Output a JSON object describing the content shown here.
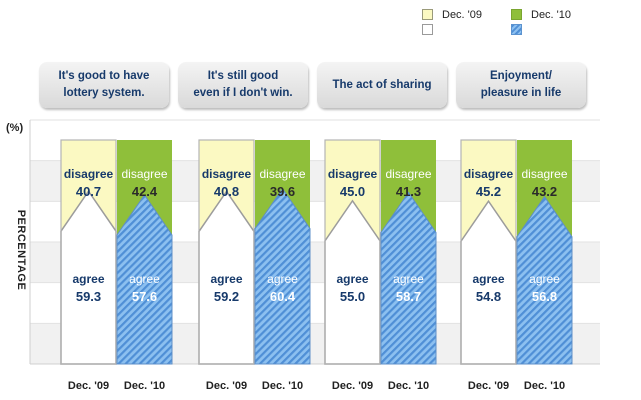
{
  "legend": {
    "items": [
      {
        "label": "Dec. '09",
        "color": "#fbf9c2",
        "border": "#9a9a7a"
      },
      {
        "label": "Dec. '10",
        "color": "#8fbf3a",
        "border": "#7aa530"
      }
    ],
    "agree_colors": [
      "#ffffff",
      "#6aa7e3"
    ]
  },
  "chart_data": {
    "type": "stacked-bar",
    "y_axis_label": "PERCENTAGE",
    "unit": "(%)",
    "categories": [
      "It's good to have\nlottery system.",
      "It's still good\neven if I don't win.",
      "The act of sharing",
      "Enjoyment/\npleasure in life"
    ],
    "periods": [
      "Dec. '09",
      "Dec. '10"
    ],
    "segments": [
      "disagree",
      "agree"
    ],
    "series": [
      {
        "name": "Dec. '09",
        "disagree": [
          40.7,
          40.8,
          45.0,
          45.2
        ],
        "agree": [
          59.3,
          59.2,
          55.0,
          54.8
        ]
      },
      {
        "name": "Dec. '10",
        "disagree": [
          42.4,
          39.6,
          41.3,
          43.2
        ],
        "agree": [
          57.6,
          60.4,
          58.7,
          56.8
        ]
      }
    ],
    "ylim": [
      0,
      100
    ],
    "grid": true,
    "legend_position": "top-right"
  }
}
